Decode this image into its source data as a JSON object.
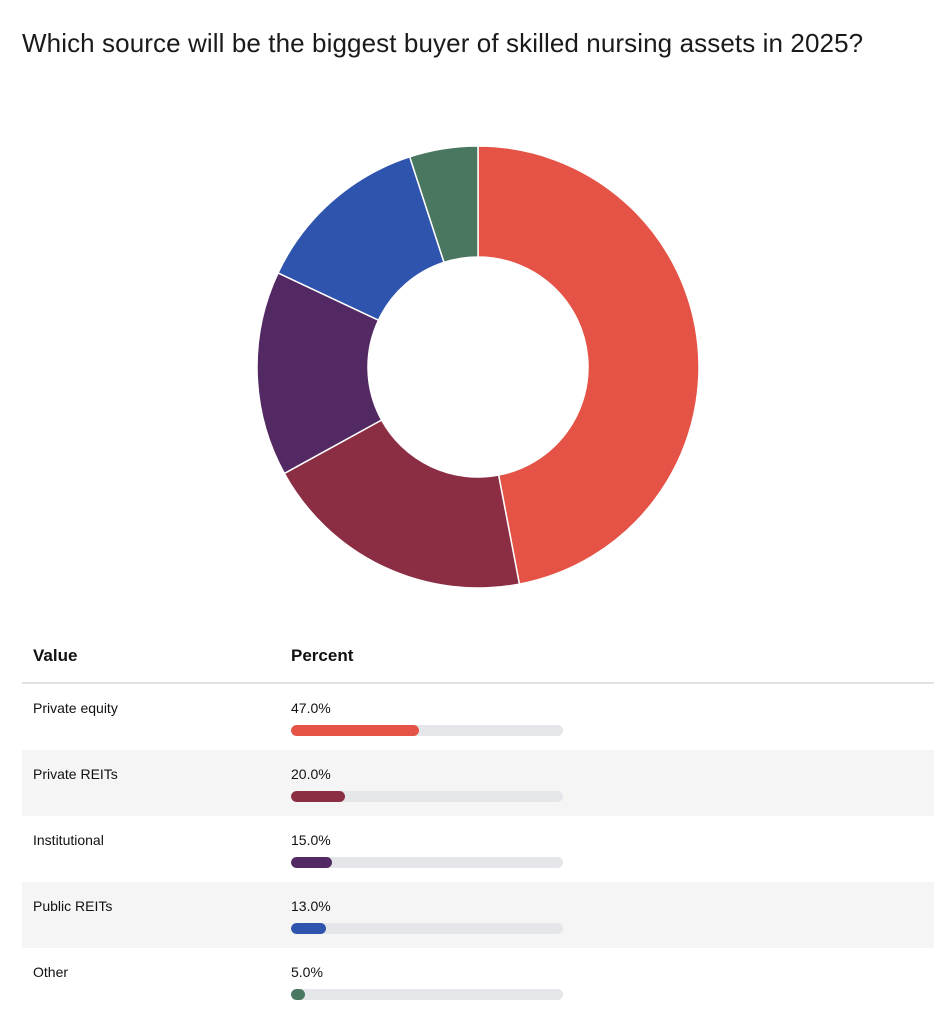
{
  "title": "Which source will be the biggest buyer of skilled nursing assets in 2025?",
  "table": {
    "headers": {
      "value": "Value",
      "percent": "Percent"
    }
  },
  "chart_data": {
    "type": "pie",
    "donut": true,
    "title": "Which source will be the biggest buyer of skilled nursing assets in 2025?",
    "categories": [
      "Private equity",
      "Private REITs",
      "Institutional",
      "Public REITs",
      "Other"
    ],
    "values": [
      47.0,
      20.0,
      15.0,
      13.0,
      5.0
    ],
    "labels": [
      "47.0%",
      "20.0%",
      "15.0%",
      "13.0%",
      "5.0%"
    ],
    "colors": [
      "#e45346",
      "#8b2e44",
      "#522962",
      "#2f54ad",
      "#4a7760"
    ],
    "unit": "%"
  }
}
